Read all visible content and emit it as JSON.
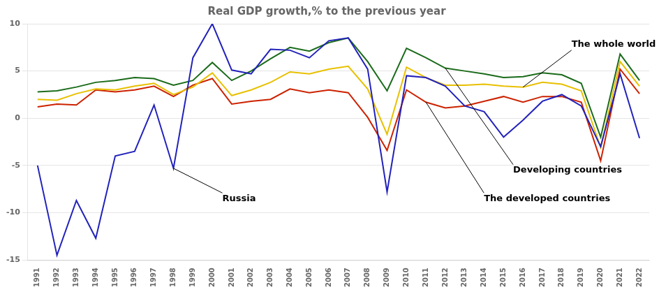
{
  "chart_data": {
    "type": "line",
    "title": "Real GDP growth,% to the previous year",
    "x": [
      1991,
      1992,
      1993,
      1994,
      1995,
      1996,
      1997,
      1998,
      1999,
      2000,
      2001,
      2002,
      2003,
      2004,
      2005,
      2006,
      2007,
      2008,
      2009,
      2010,
      2011,
      2012,
      2013,
      2014,
      2015,
      2016,
      2017,
      2018,
      2019,
      2020,
      2021,
      2022
    ],
    "series": [
      {
        "name": "The developed countries",
        "color": "#cc2200",
        "values": [
          1.2,
          1.5,
          1.4,
          3.0,
          2.8,
          3.0,
          3.4,
          2.3,
          3.5,
          4.2,
          1.5,
          1.8,
          2.0,
          3.1,
          2.7,
          3.0,
          2.7,
          0.1,
          -3.4,
          3.0,
          1.7,
          1.1,
          1.3,
          1.8,
          2.3,
          1.7,
          2.3,
          2.3,
          1.7,
          -4.5,
          5.2,
          2.6
        ]
      },
      {
        "name": "Developing countries",
        "color": "#1a6b1a",
        "values": [
          2.8,
          2.9,
          3.3,
          3.8,
          4.0,
          4.3,
          4.2,
          3.5,
          4.0,
          5.9,
          4.0,
          5.0,
          6.3,
          7.5,
          7.1,
          8.0,
          8.5,
          6.0,
          2.9,
          7.4,
          6.4,
          5.3,
          5.0,
          4.7,
          4.3,
          4.4,
          4.8,
          4.6,
          3.7,
          -2.0,
          6.8,
          4.0
        ]
      },
      {
        "name": "The whole world",
        "color": "#e8c000",
        "values": [
          2.0,
          1.9,
          2.6,
          3.1,
          3.0,
          3.4,
          3.7,
          2.5,
          3.3,
          4.8,
          2.4,
          3.0,
          3.8,
          4.9,
          4.7,
          5.2,
          5.5,
          3.1,
          -1.7,
          5.4,
          4.3,
          3.5,
          3.5,
          3.6,
          3.4,
          3.3,
          3.8,
          3.6,
          2.9,
          -3.1,
          6.0,
          3.4
        ]
      },
      {
        "name": "Russia",
        "color": "#2222bb",
        "values": [
          -5.0,
          -14.5,
          -8.7,
          -12.7,
          -4.0,
          -3.5,
          1.4,
          -5.3,
          6.4,
          10.0,
          5.1,
          4.7,
          7.3,
          7.2,
          6.4,
          8.2,
          8.5,
          5.2,
          -7.8,
          4.5,
          4.3,
          3.4,
          1.3,
          0.7,
          -2.0,
          -0.2,
          1.8,
          2.5,
          1.3,
          -3.0,
          4.7,
          -2.1
        ]
      }
    ],
    "annotations": [
      "The developed countries",
      "Developing countries",
      "The whole world",
      "Russia"
    ],
    "xlim": [
      1990.5,
      2022.5
    ],
    "xticks": [
      1991,
      1992,
      1993,
      1994,
      1995,
      1996,
      1997,
      1998,
      1999,
      2000,
      2001,
      2002,
      2003,
      2004,
      2005,
      2006,
      2007,
      2008,
      2009,
      2010,
      2011,
      2012,
      2013,
      2014,
      2015,
      2016,
      2017,
      2018,
      2019,
      2020,
      2021,
      2022
    ],
    "ylim": [
      -15,
      10
    ],
    "yticks": [
      -15,
      -10,
      -5,
      0,
      5,
      10
    ],
    "grid": "y",
    "legend": false
  }
}
